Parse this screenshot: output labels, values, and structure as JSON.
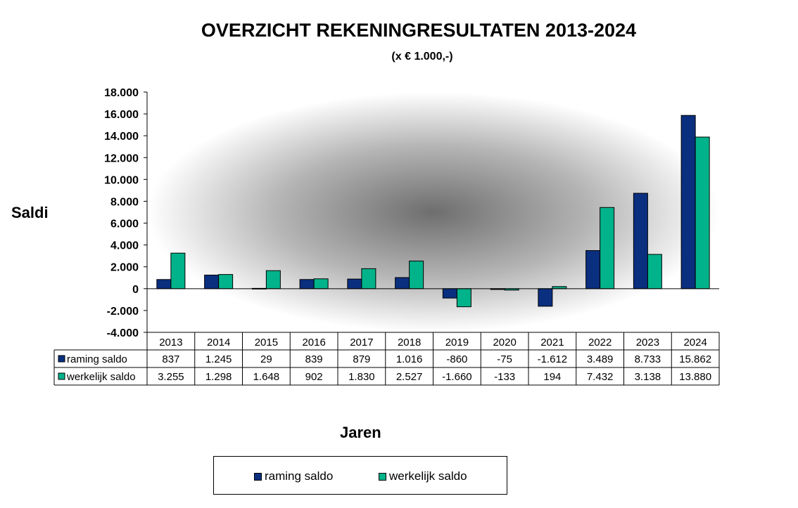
{
  "chart_data": {
    "type": "bar",
    "title": "OVERZICHT REKENINGRESULTATEN 2013-2024",
    "subtitle": "(x € 1.000,-)",
    "ylabel": "Saldi",
    "xlabel": "Jaren",
    "ylim": [
      -4000,
      18000
    ],
    "yticks": [
      -4000,
      -2000,
      0,
      2000,
      4000,
      6000,
      8000,
      10000,
      12000,
      14000,
      16000,
      18000
    ],
    "ytick_labels": [
      "-4.000",
      "-2.000",
      "0",
      "2.000",
      "4.000",
      "6.000",
      "8.000",
      "10.000",
      "12.000",
      "14.000",
      "16.000",
      "18.000"
    ],
    "categories": [
      "2013",
      "2014",
      "2015",
      "2016",
      "2017",
      "2018",
      "2019",
      "2020",
      "2021",
      "2022",
      "2023",
      "2024"
    ],
    "series": [
      {
        "name": "raming saldo",
        "color": "#0a2f7f",
        "values": [
          837,
          1245,
          29,
          839,
          879,
          1016,
          -860,
          -75,
          -1612,
          3489,
          8733,
          15862
        ],
        "labels": [
          "837",
          "1.245",
          "29",
          "839",
          "879",
          "1.016",
          "-860",
          "-75",
          "-1.612",
          "3.489",
          "8.733",
          "15.862"
        ]
      },
      {
        "name": "werkelijk saldo",
        "color": "#00b38a",
        "values": [
          3255,
          1298,
          1648,
          902,
          1830,
          2527,
          -1660,
          -133,
          194,
          7432,
          3138,
          13880
        ],
        "labels": [
          "3.255",
          "1.298",
          "1.648",
          "902",
          "1.830",
          "2.527",
          "-1.660",
          "-133",
          "194",
          "7.432",
          "3.138",
          "13.880"
        ]
      }
    ],
    "legend_position": "bottom",
    "data_table": true,
    "grid": false
  }
}
